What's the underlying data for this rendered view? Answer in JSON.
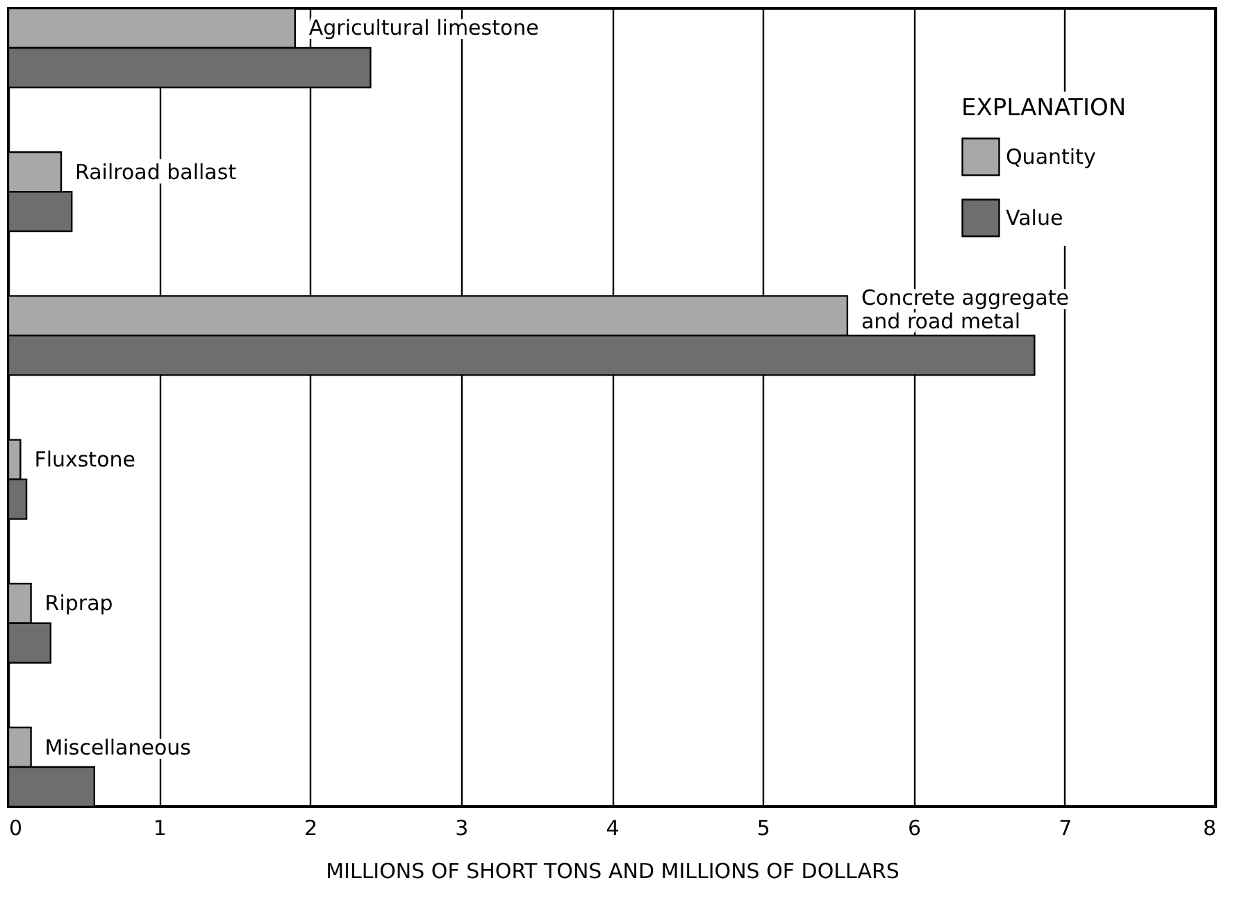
{
  "chart_data": {
    "type": "bar",
    "orientation": "horizontal",
    "categories": [
      "Agricultural limestone",
      "Railroad ballast",
      "Concrete aggregate and road metal",
      "Fluxstone",
      "Riprap",
      "Miscellaneous"
    ],
    "series": [
      {
        "name": "Quantity",
        "color": "#a8a8a8",
        "values": [
          1.9,
          0.35,
          5.56,
          0.08,
          0.15,
          0.15
        ]
      },
      {
        "name": "Value",
        "color": "#6e6e6e",
        "values": [
          2.4,
          0.42,
          6.8,
          0.12,
          0.28,
          0.57
        ]
      }
    ],
    "xlim": [
      0,
      8
    ],
    "xticks": [
      0,
      1,
      2,
      3,
      4,
      5,
      6,
      7,
      8
    ],
    "xlabel": "MILLIONS OF SHORT TONS AND MILLIONS OF DOLLARS",
    "legend_title": "EXPLANATION",
    "legend": "top right",
    "grid": "x",
    "tick_labels": "x"
  }
}
